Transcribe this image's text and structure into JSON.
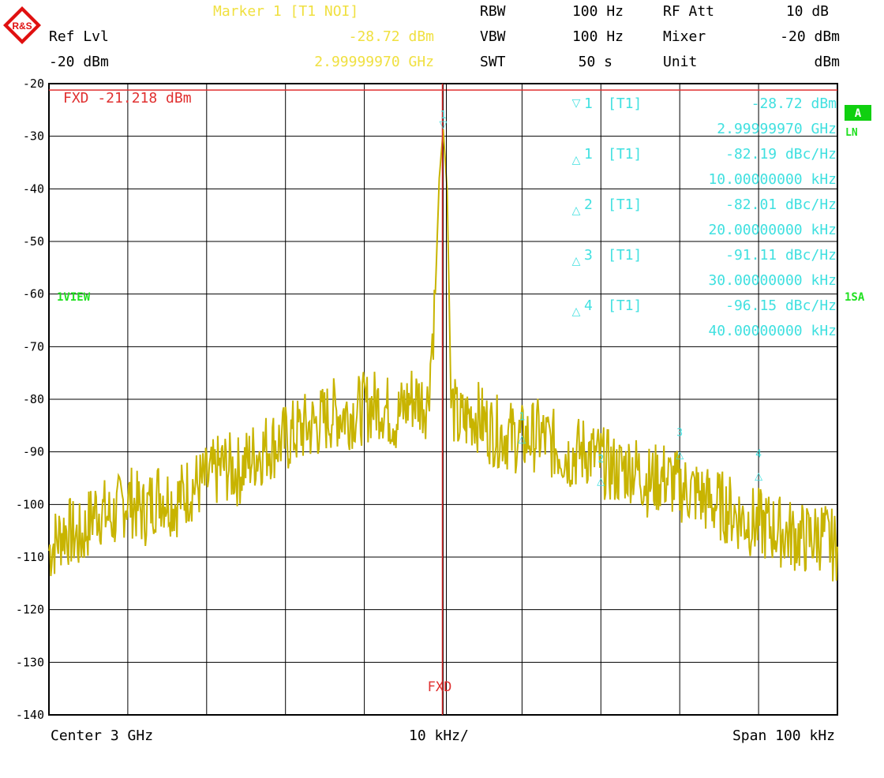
{
  "header": {
    "marker_title": "Marker 1 [T1 NOI]",
    "ref_lvl_label": "Ref Lvl",
    "ref_lvl_value": "-20 dBm",
    "marker_level": "-28.72 dBm",
    "marker_freq": "2.99999970 GHz",
    "rbw_label": "RBW",
    "rbw_value": "100 Hz",
    "vbw_label": "VBW",
    "vbw_value": "100 Hz",
    "swt_label": "SWT",
    "swt_value": "50 s",
    "rfatt_label": "RF Att",
    "rfatt_value": "10 dB",
    "mixer_label": "Mixer",
    "mixer_value": "-20 dBm",
    "unit_label": "Unit",
    "unit_value": "dBm"
  },
  "logo": {
    "text": "R&S"
  },
  "side_labels": {
    "a_box": "A",
    "ln": "LN",
    "view": "1VIEW",
    "sa": "1SA"
  },
  "fxd": {
    "label": "FXD -21.218 dBm",
    "bottom_label": "FXD",
    "level": -21.218
  },
  "markers": [
    {
      "symbol": "▽",
      "num": "1",
      "trace": "[T1]",
      "value": "-28.72 dBm",
      "freq": "2.99999970 GHz"
    },
    {
      "symbol": "△",
      "num": "1",
      "trace": "[T1]",
      "value": "-82.19 dBc/Hz",
      "freq": "10.00000000 kHz"
    },
    {
      "symbol": "△",
      "num": "2",
      "trace": "[T1]",
      "value": "-82.01 dBc/Hz",
      "freq": "20.00000000 kHz"
    },
    {
      "symbol": "△",
      "num": "3",
      "trace": "[T1]",
      "value": "-91.11 dBc/Hz",
      "freq": "30.00000000 kHz"
    },
    {
      "symbol": "△",
      "num": "4",
      "trace": "[T1]",
      "value": "-96.15 dBc/Hz",
      "freq": "40.00000000 kHz"
    }
  ],
  "footer": {
    "center": "Center 3 GHz",
    "div": "10 kHz/",
    "span": "Span 100 kHz"
  },
  "colors": {
    "trace": "#c8b400",
    "marker": "#40e0e0",
    "fxd": "#e03030",
    "header_yellow": "#f0e040",
    "side_green": "#20e020"
  },
  "chart_data": {
    "type": "line",
    "title": "",
    "xlabel": "",
    "ylabel": "",
    "x_offset_range_khz": [
      -50,
      50
    ],
    "ylim": [
      -140,
      -20
    ],
    "yticks": [
      -20,
      -30,
      -40,
      -50,
      -60,
      -70,
      -80,
      -90,
      -100,
      -110,
      -120,
      -130,
      -140
    ],
    "grid": true,
    "fxd_line_dbm": -21.218,
    "series": [
      {
        "x_khz": [
          -50,
          -48,
          -46,
          -44,
          -42,
          -40,
          -38,
          -36,
          -34,
          -32,
          -30,
          -28,
          -26,
          -24,
          -22,
          -20,
          -18,
          -16,
          -14,
          -12,
          -10,
          -8,
          -6,
          -4,
          -2,
          -1,
          -0.5,
          0,
          0.5,
          1,
          2,
          4,
          6,
          8,
          10,
          12,
          14,
          16,
          18,
          20,
          22,
          24,
          26,
          28,
          30,
          32,
          34,
          36,
          38,
          40,
          42,
          44,
          46,
          48,
          50
        ],
        "y_dbm": [
          -108,
          -104,
          -106,
          -100,
          -102,
          -98,
          -101,
          -97,
          -99,
          -96,
          -95,
          -92,
          -93,
          -90,
          -88,
          -87,
          -85,
          -84,
          -82,
          -82,
          -81,
          -80,
          -83,
          -79,
          -80,
          -60,
          -38,
          -28.7,
          -40,
          -80,
          -84,
          -82,
          -85,
          -86,
          -87,
          -86,
          -88,
          -90,
          -89,
          -91,
          -93,
          -92,
          -95,
          -94,
          -96,
          -97,
          -99,
          -100,
          -102,
          -103,
          -104,
          -105,
          -106,
          -105,
          -108
        ]
      }
    ],
    "marker_points": [
      {
        "label": "1",
        "x_khz": 0,
        "y_dbm": -28.72
      },
      {
        "label": "1",
        "x_khz": 10,
        "y_dbm": -87
      },
      {
        "label": "2",
        "x_khz": 20,
        "y_dbm": -95
      },
      {
        "label": "3",
        "x_khz": 30,
        "y_dbm": -90
      },
      {
        "label": "4",
        "x_khz": 40,
        "y_dbm": -94
      }
    ]
  }
}
